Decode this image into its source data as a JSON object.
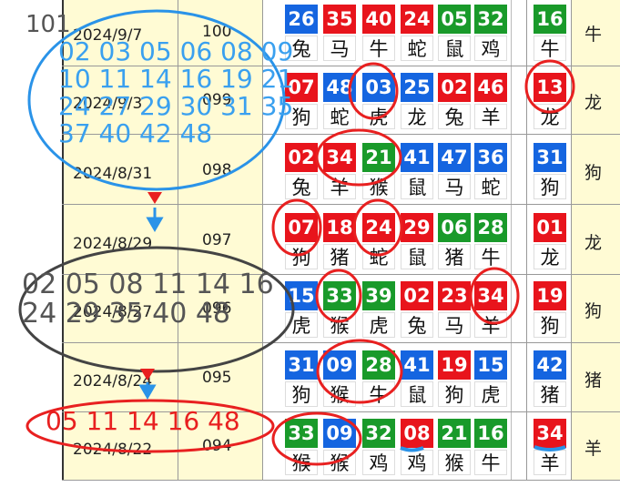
{
  "annotation": {
    "issue": "101",
    "blue_lines": [
      "02 03 05 06 08 09",
      "10 11 14 16 19 21",
      "24 27 29 30 31 35",
      "37 40 42 48"
    ],
    "gray_lines": [
      "02 05 08 11 14 16",
      "24 29 35 40 48"
    ],
    "red_line": "05 11 14 16 48"
  },
  "rows": [
    {
      "date": "2024/9/7",
      "issue": "100",
      "balls": [
        {
          "num": "26",
          "zodiac": "兔",
          "color": "#1565e0"
        },
        {
          "num": "35",
          "zodiac": "马",
          "color": "#e8141c"
        },
        {
          "num": "40",
          "zodiac": "牛",
          "color": "#e8141c"
        },
        {
          "num": "24",
          "zodiac": "蛇",
          "color": "#e8141c"
        },
        {
          "num": "05",
          "zodiac": "鼠",
          "color": "#199a2a"
        },
        {
          "num": "32",
          "zodiac": "鸡",
          "color": "#199a2a"
        }
      ],
      "special": {
        "num": "16",
        "zodiac": "牛",
        "color": "#199a2a"
      },
      "zodiac": "牛"
    },
    {
      "date": "2024/9/3",
      "issue": "099",
      "balls": [
        {
          "num": "07",
          "zodiac": "狗",
          "color": "#e8141c"
        },
        {
          "num": "48",
          "zodiac": "蛇",
          "color": "#1565e0"
        },
        {
          "num": "03",
          "zodiac": "虎",
          "color": "#1565e0"
        },
        {
          "num": "25",
          "zodiac": "龙",
          "color": "#1565e0"
        },
        {
          "num": "02",
          "zodiac": "兔",
          "color": "#e8141c"
        },
        {
          "num": "46",
          "zodiac": "羊",
          "color": "#e8141c"
        }
      ],
      "special": {
        "num": "13",
        "zodiac": "龙",
        "color": "#e8141c"
      },
      "zodiac": "龙"
    },
    {
      "date": "2024/8/31",
      "issue": "098",
      "balls": [
        {
          "num": "02",
          "zodiac": "兔",
          "color": "#e8141c"
        },
        {
          "num": "34",
          "zodiac": "羊",
          "color": "#e8141c"
        },
        {
          "num": "21",
          "zodiac": "猴",
          "color": "#199a2a"
        },
        {
          "num": "41",
          "zodiac": "鼠",
          "color": "#1565e0"
        },
        {
          "num": "47",
          "zodiac": "马",
          "color": "#1565e0"
        },
        {
          "num": "36",
          "zodiac": "蛇",
          "color": "#1565e0"
        }
      ],
      "special": {
        "num": "31",
        "zodiac": "狗",
        "color": "#1565e0"
      },
      "zodiac": "狗"
    },
    {
      "date": "2024/8/29",
      "issue": "097",
      "balls": [
        {
          "num": "07",
          "zodiac": "狗",
          "color": "#e8141c"
        },
        {
          "num": "18",
          "zodiac": "猪",
          "color": "#e8141c"
        },
        {
          "num": "24",
          "zodiac": "蛇",
          "color": "#e8141c"
        },
        {
          "num": "29",
          "zodiac": "鼠",
          "color": "#e8141c"
        },
        {
          "num": "06",
          "zodiac": "猪",
          "color": "#199a2a"
        },
        {
          "num": "28",
          "zodiac": "牛",
          "color": "#199a2a"
        }
      ],
      "special": {
        "num": "01",
        "zodiac": "龙",
        "color": "#e8141c"
      },
      "zodiac": "龙"
    },
    {
      "date": "2024/8/27",
      "issue": "096",
      "balls": [
        {
          "num": "15",
          "zodiac": "虎",
          "color": "#1565e0"
        },
        {
          "num": "33",
          "zodiac": "猴",
          "color": "#199a2a"
        },
        {
          "num": "39",
          "zodiac": "虎",
          "color": "#199a2a"
        },
        {
          "num": "02",
          "zodiac": "兔",
          "color": "#e8141c"
        },
        {
          "num": "23",
          "zodiac": "马",
          "color": "#e8141c"
        },
        {
          "num": "34",
          "zodiac": "羊",
          "color": "#e8141c"
        }
      ],
      "special": {
        "num": "19",
        "zodiac": "狗",
        "color": "#e8141c"
      },
      "zodiac": "狗"
    },
    {
      "date": "2024/8/24",
      "issue": "095",
      "balls": [
        {
          "num": "31",
          "zodiac": "狗",
          "color": "#1565e0"
        },
        {
          "num": "09",
          "zodiac": "猴",
          "color": "#1565e0"
        },
        {
          "num": "28",
          "zodiac": "牛",
          "color": "#199a2a"
        },
        {
          "num": "41",
          "zodiac": "鼠",
          "color": "#1565e0"
        },
        {
          "num": "19",
          "zodiac": "狗",
          "color": "#e8141c"
        },
        {
          "num": "15",
          "zodiac": "虎",
          "color": "#1565e0"
        }
      ],
      "special": {
        "num": "42",
        "zodiac": "猪",
        "color": "#1565e0"
      },
      "zodiac": "猪"
    },
    {
      "date": "2024/8/22",
      "issue": "094",
      "balls": [
        {
          "num": "33",
          "zodiac": "猴",
          "color": "#199a2a"
        },
        {
          "num": "09",
          "zodiac": "猴",
          "color": "#1565e0"
        },
        {
          "num": "32",
          "zodiac": "鸡",
          "color": "#199a2a"
        },
        {
          "num": "08",
          "zodiac": "鸡",
          "color": "#e8141c"
        },
        {
          "num": "21",
          "zodiac": "猴",
          "color": "#199a2a"
        },
        {
          "num": "16",
          "zodiac": "牛",
          "color": "#199a2a"
        }
      ],
      "special": {
        "num": "34",
        "zodiac": "羊",
        "color": "#e8141c"
      },
      "zodiac": "羊"
    }
  ]
}
